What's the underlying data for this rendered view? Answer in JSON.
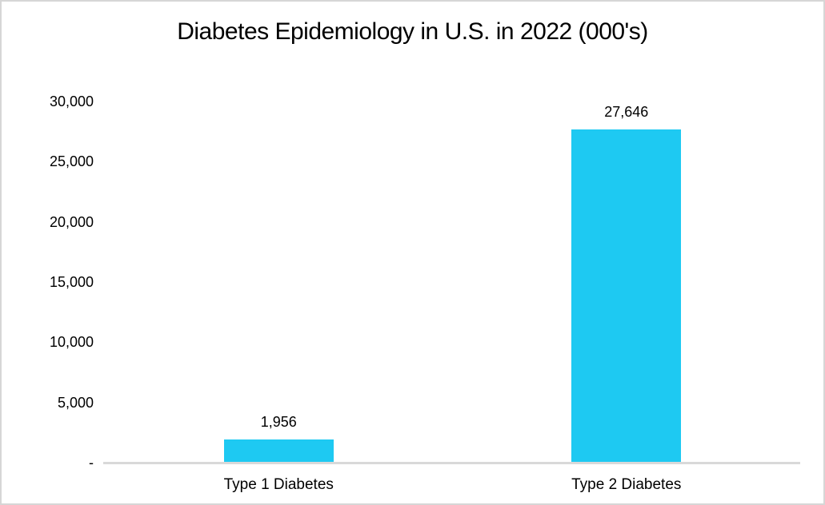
{
  "chart_data": {
    "type": "bar",
    "title": "Diabetes Epidemiology in U.S. in 2022 (000's)",
    "categories": [
      "Type 1 Diabetes",
      "Type 2 Diabetes"
    ],
    "values": [
      1956,
      27646
    ],
    "value_labels": [
      "1,956",
      "27,646"
    ],
    "xlabel": "",
    "ylabel": "",
    "ylim": [
      0,
      30000
    ],
    "y_ticks": [
      {
        "value": 30000,
        "label": "30,000"
      },
      {
        "value": 25000,
        "label": "25,000"
      },
      {
        "value": 20000,
        "label": "20,000"
      },
      {
        "value": 15000,
        "label": "15,000"
      },
      {
        "value": 10000,
        "label": "10,000"
      },
      {
        "value": 5000,
        "label": "5,000"
      },
      {
        "value": 0,
        "label": "-"
      }
    ],
    "grid": false,
    "legend": "none",
    "colors": {
      "bar": "#1ec9f2",
      "axis_line": "#d9d9d9",
      "text": "#000000"
    }
  }
}
